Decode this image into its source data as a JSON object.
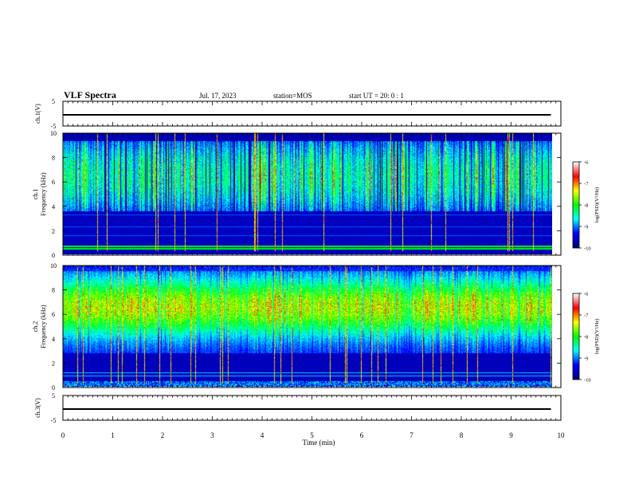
{
  "header": {
    "title": "VLF Spectra",
    "date": "Jul. 17, 2023",
    "station": "station=MOS",
    "start_ut": "start UT =  20: 0  : 1"
  },
  "chart_data": [
    {
      "type": "line",
      "panel": "ch1-voltage",
      "ylabel": "ch.1(V)",
      "ylim": [
        -5,
        5
      ],
      "yticks": [
        "5",
        "-5"
      ],
      "x": [
        0,
        9.8
      ],
      "y": [
        -0.5,
        -0.5
      ]
    },
    {
      "type": "heatmap",
      "panel": "ch1-spectrogram",
      "ylabel": "ch.1\nFrequency (kHz)",
      "ylim": [
        0,
        10
      ],
      "yticks": [
        "0",
        "2",
        "4",
        "6",
        "8",
        "10"
      ],
      "xlim": [
        0,
        9.8
      ],
      "colorbar": {
        "label": "log(PSD)(V²/Hz)",
        "range": [
          -10,
          -6
        ],
        "ticks": [
          "-6",
          "-7",
          "-8",
          "-9",
          "-10"
        ]
      }
    },
    {
      "type": "heatmap",
      "panel": "ch2-spectrogram",
      "ylabel": "ch.2\nFrequency (kHz)",
      "ylim": [
        0,
        10
      ],
      "yticks": [
        "0",
        "2",
        "4",
        "6",
        "8",
        "10"
      ],
      "xlim": [
        0,
        9.8
      ],
      "colorbar": {
        "label": "log(PSD)(V²/Hz)",
        "range": [
          -10,
          -6
        ],
        "ticks": [
          "-6",
          "-7",
          "-8",
          "-9",
          "-10"
        ]
      }
    },
    {
      "type": "line",
      "panel": "ch3-voltage",
      "ylabel": "ch.3(V)",
      "ylim": [
        -5,
        5
      ],
      "yticks": [
        "5",
        "-5"
      ],
      "x": [
        0,
        9.8
      ],
      "y": [
        -0.5,
        -0.5
      ]
    }
  ],
  "xaxis": {
    "label": "Time (min)",
    "xlim": [
      0,
      10
    ],
    "ticks": [
      "0",
      "1",
      "2",
      "3",
      "4",
      "5",
      "6",
      "7",
      "8",
      "9",
      "10"
    ]
  },
  "colormap": [
    "#000080",
    "#0000ff",
    "#00ffff",
    "#00ff00",
    "#ffff00",
    "#ff0000",
    "#ffffff"
  ]
}
